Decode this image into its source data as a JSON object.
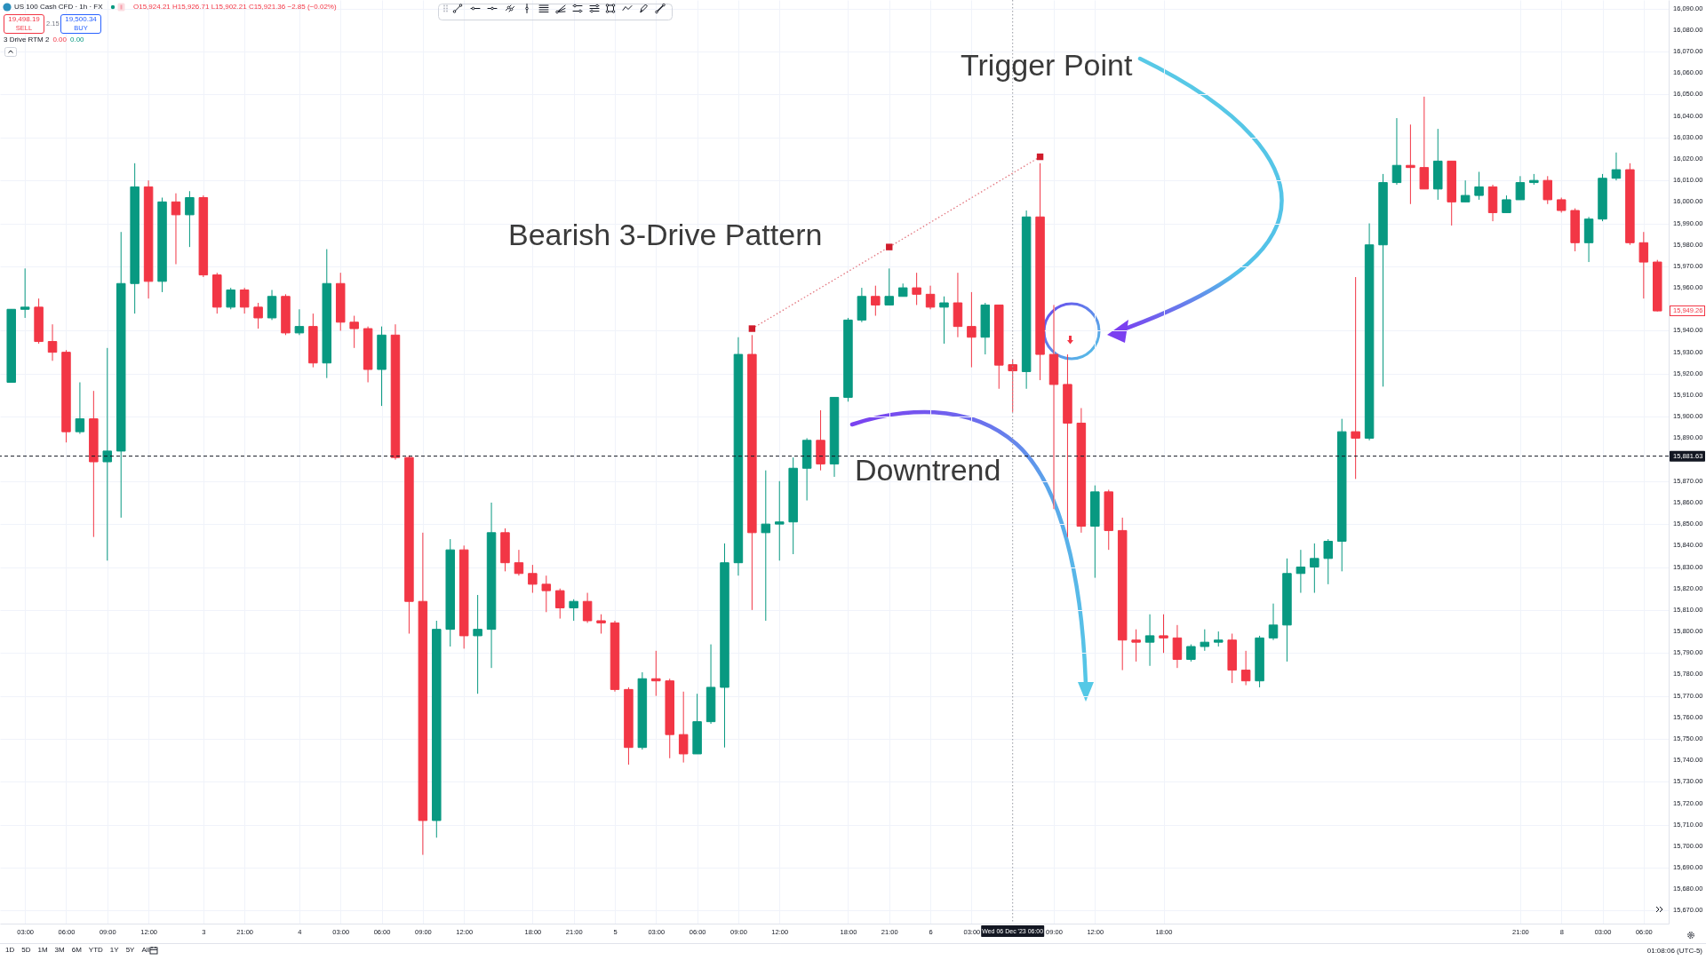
{
  "chart_data": {
    "type": "candlestick",
    "title": "US 100 Cash CFD · 1h · FX",
    "subtitle": "O15,924.21 H15,926.71 L15,902.21 C15,921.36 −2.85 (−0.02%)",
    "categories": [
      null,
      "03:00",
      null,
      null,
      "06:00",
      null,
      null,
      "09:00",
      null,
      null,
      "12:00",
      null,
      null,
      null,
      "3",
      null,
      null,
      "21:00",
      null,
      null,
      null,
      "4",
      null,
      null,
      "03:00",
      null,
      null,
      "06:00",
      null,
      null,
      "09:00",
      null,
      null,
      "12:00",
      null,
      null,
      null,
      null,
      "18:00",
      null,
      null,
      "21:00",
      null,
      null,
      "5",
      null,
      null,
      "03:00",
      null,
      null,
      "06:00",
      null,
      null,
      "09:00",
      null,
      null,
      "12:00",
      null,
      null,
      null,
      null,
      "18:00",
      null,
      null,
      "21:00",
      null,
      null,
      "6",
      null,
      null,
      "03:00",
      null,
      null,
      "Wed 06 Dec '23 06:00",
      null,
      null,
      "09:00",
      null,
      null,
      "12:00",
      null,
      null,
      null,
      null,
      "18:00",
      null,
      null,
      null,
      null,
      null,
      null,
      null,
      null,
      null,
      null,
      null,
      null,
      null,
      null,
      null,
      null,
      null,
      null,
      null,
      null,
      null,
      null,
      null,
      null,
      null,
      "21:00",
      null,
      null,
      "8",
      null,
      null,
      "03:00",
      null,
      null,
      "06:00",
      null
    ],
    "ohlc": [
      [
        15916,
        15950,
        15916,
        15950
      ],
      [
        15950,
        15969,
        15946,
        15951
      ],
      [
        15951,
        15955,
        15934,
        15935
      ],
      [
        15935,
        15943,
        15926,
        15930
      ],
      [
        15930,
        15931,
        15888,
        15893
      ],
      [
        15893,
        15916,
        15892,
        15899
      ],
      [
        15899,
        15912,
        15844,
        15879
      ],
      [
        15879,
        15932,
        15833,
        15884
      ],
      [
        15884,
        15986,
        15853,
        15962
      ],
      [
        15962,
        16018,
        15948,
        16007
      ],
      [
        16007,
        16010,
        15955,
        15963
      ],
      [
        15963,
        16002,
        15958,
        16000
      ],
      [
        16000,
        16004,
        15971,
        15994
      ],
      [
        15994,
        16005,
        15979,
        16002
      ],
      [
        16002,
        16003,
        15965,
        15966
      ],
      [
        15966,
        15967,
        15948,
        15951
      ],
      [
        15951,
        15960,
        15950,
        15959
      ],
      [
        15959,
        15960,
        15948,
        15951
      ],
      [
        15951,
        15953,
        15941,
        15946
      ],
      [
        15946,
        15959,
        15945,
        15956
      ],
      [
        15956,
        15957,
        15938,
        15939
      ],
      [
        15939,
        15950,
        15938,
        15942
      ],
      [
        15942,
        15948,
        15923,
        15925
      ],
      [
        15925,
        15978,
        15918,
        15962
      ],
      [
        15962,
        15967,
        15940,
        15944
      ],
      [
        15944,
        15947,
        15932,
        15941
      ],
      [
        15941,
        15942,
        15916,
        15922
      ],
      [
        15922,
        15942,
        15905,
        15938
      ],
      [
        15938,
        15943,
        15880,
        15881
      ],
      [
        15881,
        15882,
        15799,
        15814
      ],
      [
        15814,
        15846,
        15696,
        15712
      ],
      [
        15712,
        15805,
        15704,
        15801
      ],
      [
        15801,
        15843,
        15793,
        15838
      ],
      [
        15838,
        15840,
        15792,
        15798
      ],
      [
        15798,
        15817,
        15771,
        15801
      ],
      [
        15801,
        15860,
        15783,
        15846
      ],
      [
        15846,
        15848,
        15828,
        15832
      ],
      [
        15832,
        15838,
        15826,
        15827
      ],
      [
        15827,
        15831,
        15818,
        15822
      ],
      [
        15822,
        15826,
        15809,
        15819
      ],
      [
        15819,
        15820,
        15806,
        15811
      ],
      [
        15811,
        15815,
        15805,
        15814
      ],
      [
        15814,
        15818,
        15804,
        15805
      ],
      [
        15805,
        15808,
        15799,
        15804
      ],
      [
        15804,
        15805,
        15772,
        15773
      ],
      [
        15773,
        15774,
        15738,
        15746
      ],
      [
        15746,
        15781,
        15745,
        15778
      ],
      [
        15778,
        15791,
        15770,
        15777
      ],
      [
        15777,
        15778,
        15741,
        15752
      ],
      [
        15752,
        15772,
        15739,
        15743
      ],
      [
        15743,
        15771,
        15743,
        15758
      ],
      [
        15758,
        15794,
        15757,
        15774
      ],
      [
        15774,
        15841,
        15746,
        15832
      ],
      [
        15832,
        15937,
        15826,
        15929
      ],
      [
        15929,
        15938,
        15810,
        15846
      ],
      [
        15846,
        15875,
        15805,
        15850
      ],
      [
        15850,
        15870,
        15833,
        15851
      ],
      [
        15851,
        15881,
        15836,
        15876
      ],
      [
        15876,
        15890,
        15861,
        15889
      ],
      [
        15889,
        15903,
        15875,
        15878
      ],
      [
        15878,
        15909,
        15872,
        15909
      ],
      [
        15909,
        15946,
        15907,
        15945
      ],
      [
        15945,
        15960,
        15944,
        15956
      ],
      [
        15956,
        15961,
        15947,
        15952
      ],
      [
        15952,
        15969,
        15952,
        15956
      ],
      [
        15956,
        15962,
        15956,
        15960
      ],
      [
        15960,
        15967,
        15952,
        15957
      ],
      [
        15957,
        15961,
        15950,
        15951
      ],
      [
        15951,
        15956,
        15934,
        15953
      ],
      [
        15953,
        15967,
        15937,
        15942
      ],
      [
        15942,
        15958,
        15923,
        15937
      ],
      [
        15937,
        15953,
        15929,
        15952
      ],
      [
        15952,
        15952,
        15913,
        15924
      ],
      [
        15924.21,
        15926.71,
        15902.21,
        15921.36
      ],
      [
        15921,
        15996,
        15913,
        15993
      ],
      [
        15993,
        16018,
        15917,
        15929
      ],
      [
        15929,
        15952,
        15857,
        15915
      ],
      [
        15915,
        15929,
        15844,
        15897
      ],
      [
        15897,
        15904,
        15846,
        15849
      ],
      [
        15849,
        15868,
        15825,
        15865
      ],
      [
        15865,
        15866,
        15838,
        15847
      ],
      [
        15847,
        15853,
        15782,
        15796
      ],
      [
        15796,
        15801,
        15786,
        15795
      ],
      [
        15795,
        15808,
        15784,
        15798
      ],
      [
        15798,
        15808,
        15790,
        15797
      ],
      [
        15797,
        15803,
        15783,
        15787
      ],
      [
        15787,
        15794,
        15786,
        15793
      ],
      [
        15793,
        15801,
        15791,
        15795
      ],
      [
        15795,
        15800,
        15793,
        15796
      ],
      [
        15796,
        15799,
        15776,
        15782
      ],
      [
        15782,
        15791,
        15775,
        15777
      ],
      [
        15777,
        15798,
        15774,
        15797
      ],
      [
        15797,
        15813,
        15796,
        15803
      ],
      [
        15803,
        15834,
        15786,
        15827
      ],
      [
        15827,
        15838,
        15818,
        15830
      ],
      [
        15830,
        15841,
        15818,
        15834
      ],
      [
        15834,
        15843,
        15822,
        15842
      ],
      [
        15842,
        15899,
        15828,
        15893
      ],
      [
        15893,
        15965,
        15871,
        15890
      ],
      [
        15890,
        15990,
        15889,
        15980
      ],
      [
        15980,
        16013,
        15914,
        16009
      ],
      [
        16009,
        16039,
        16008,
        16017
      ],
      [
        16017,
        16036,
        15999,
        16016
      ],
      [
        16016,
        16049,
        16006,
        16006
      ],
      [
        16006,
        16034,
        16001,
        16019
      ],
      [
        16019,
        16019,
        15989,
        16000
      ],
      [
        16000,
        16010,
        16000,
        16003
      ],
      [
        16003,
        16014,
        16001,
        16007
      ],
      [
        16007,
        16008,
        15991,
        15995
      ],
      [
        15995,
        16003,
        15995,
        16001
      ],
      [
        16001,
        16012,
        16001,
        16009
      ],
      [
        16009,
        16013,
        16008,
        16010
      ],
      [
        16010,
        16012,
        15999,
        16001
      ],
      [
        16001,
        16002,
        15995,
        15996
      ],
      [
        15996,
        15997,
        15977,
        15981
      ],
      [
        15981,
        15993,
        15972,
        15992
      ],
      [
        15992,
        16013,
        15991,
        16011
      ],
      [
        16011,
        16023,
        16010,
        16015
      ],
      [
        16015,
        16018,
        15980,
        15981
      ],
      [
        15981,
        15986,
        15955,
        15972
      ],
      [
        15972,
        15973,
        15949,
        15949.26
      ]
    ],
    "colors": [
      "#089981",
      "#089981",
      "#f23645",
      "#f23645",
      "#f23645",
      "#089981",
      "#f23645",
      "#089981",
      "#089981",
      "#089981",
      "#f23645",
      "#089981",
      "#f23645",
      "#089981",
      "#f23645",
      "#f23645",
      "#089981",
      "#f23645",
      "#f23645",
      "#089981",
      "#f23645",
      "#089981",
      "#f23645",
      "#089981",
      "#f23645",
      "#f23645",
      "#f23645",
      "#089981",
      "#f23645",
      "#f23645",
      "#f23645",
      "#089981",
      "#089981",
      "#f23645",
      "#089981",
      "#089981",
      "#f23645",
      "#f23645",
      "#f23645",
      "#f23645",
      "#f23645",
      "#089981",
      "#f23645",
      "#f23645",
      "#f23645",
      "#f23645",
      "#089981",
      "#f23645",
      "#f23645",
      "#f23645",
      "#089981",
      "#089981",
      "#089981",
      "#089981",
      "#f23645",
      "#089981",
      "#089981",
      "#089981",
      "#089981",
      "#f23645",
      "#089981",
      "#089981",
      "#089981",
      "#f23645",
      "#089981",
      "#089981",
      "#f23645",
      "#f23645",
      "#089981",
      "#f23645",
      "#f23645",
      "#089981",
      "#f23645",
      "#f23645",
      "#089981",
      "#f23645",
      "#f23645",
      "#f23645",
      "#f23645",
      "#089981",
      "#f23645",
      "#f23645",
      "#f23645",
      "#089981",
      "#f23645",
      "#f23645",
      "#089981",
      "#089981",
      "#089981",
      "#f23645",
      "#f23645",
      "#089981",
      "#089981",
      "#089981",
      "#089981",
      "#089981",
      "#089981",
      "#089981",
      "#f23645",
      "#089981",
      "#089981",
      "#089981",
      "#f23645",
      "#f23645",
      "#089981",
      "#f23645",
      "#089981",
      "#089981",
      "#f23645",
      "#089981",
      "#089981",
      "#089981",
      "#f23645",
      "#f23645",
      "#f23645",
      "#089981",
      "#089981",
      "#089981",
      "#f23645",
      "#f23645",
      "#f23645"
    ],
    "series": [
      {
        "type": "line",
        "color": "#d01c2b",
        "line_style": "dotted",
        "marker": "square",
        "values": [
          null,
          null,
          null,
          null,
          null,
          null,
          null,
          null,
          null,
          null,
          null,
          null,
          null,
          null,
          null,
          null,
          null,
          null,
          null,
          null,
          null,
          null,
          null,
          null,
          null,
          null,
          null,
          null,
          null,
          null,
          null,
          null,
          null,
          null,
          null,
          null,
          null,
          null,
          null,
          null,
          null,
          null,
          null,
          null,
          null,
          null,
          null,
          null,
          null,
          null,
          null,
          null,
          null,
          null,
          15941,
          null,
          null,
          null,
          null,
          null,
          null,
          null,
          null,
          null,
          15979,
          null,
          null,
          null,
          null,
          null,
          null,
          null,
          null,
          null,
          null,
          16021,
          null,
          null,
          null,
          null,
          null,
          null,
          null,
          null,
          null,
          null,
          null,
          null,
          null,
          null,
          null,
          null,
          null,
          null,
          null,
          null,
          null,
          null,
          null,
          null,
          null,
          null,
          null,
          null,
          null,
          null,
          null,
          null,
          null,
          null,
          null,
          null,
          null,
          null,
          null,
          null,
          null,
          null,
          null,
          null,
          null
        ]
      }
    ],
    "ylim": [
      15664,
      16094
    ],
    "yticks": [
      {
        "value": 15670,
        "label": "15,670.00"
      },
      {
        "value": 15680,
        "label": "15,680.00"
      },
      {
        "value": 15690,
        "label": "15,690.00"
      },
      {
        "value": 15700,
        "label": "15,700.00"
      },
      {
        "value": 15710,
        "label": "15,710.00"
      },
      {
        "value": 15720,
        "label": "15,720.00"
      },
      {
        "value": 15730,
        "label": "15,730.00"
      },
      {
        "value": 15740,
        "label": "15,740.00"
      },
      {
        "value": 15750,
        "label": "15,750.00"
      },
      {
        "value": 15760,
        "label": "15,760.00"
      },
      {
        "value": 15770,
        "label": "15,770.00"
      },
      {
        "value": 15780,
        "label": "15,780.00"
      },
      {
        "value": 15790,
        "label": "15,790.00"
      },
      {
        "value": 15800,
        "label": "15,800.00"
      },
      {
        "value": 15810,
        "label": "15,810.00"
      },
      {
        "value": 15820,
        "label": "15,820.00"
      },
      {
        "value": 15830,
        "label": "15,830.00"
      },
      {
        "value": 15840,
        "label": "15,840.00"
      },
      {
        "value": 15850,
        "label": "15,850.00"
      },
      {
        "value": 15860,
        "label": "15,860.00"
      },
      {
        "value": 15870,
        "label": "15,870.00"
      },
      {
        "value": 15890,
        "label": "15,890.00"
      },
      {
        "value": 15900,
        "label": "15,900.00"
      },
      {
        "value": 15910,
        "label": "15,910.00"
      },
      {
        "value": 15920,
        "label": "15,920.00"
      },
      {
        "value": 15930,
        "label": "15,930.00"
      },
      {
        "value": 15940,
        "label": "15,940.00"
      },
      {
        "value": 15960,
        "label": "15,960.00"
      },
      {
        "value": 15970,
        "label": "15,970.00"
      },
      {
        "value": 15980,
        "label": "15,980.00"
      },
      {
        "value": 15990,
        "label": "15,990.00"
      },
      {
        "value": 16000,
        "label": "16,000.00"
      },
      {
        "value": 16010,
        "label": "16,010.00"
      },
      {
        "value": 16020,
        "label": "16,020.00"
      },
      {
        "value": 16030,
        "label": "16,030.00"
      },
      {
        "value": 16040,
        "label": "16,040.00"
      },
      {
        "value": 16050,
        "label": "16,050.00"
      },
      {
        "value": 16060,
        "label": "16,060.00"
      },
      {
        "value": 16070,
        "label": "16,070.00"
      },
      {
        "value": 16080,
        "label": "16,080.00"
      },
      {
        "value": 16090,
        "label": "16,090.00"
      }
    ],
    "grid": true,
    "ref_lines": [
      {
        "axis": "y",
        "value": 15881.63,
        "label": "15,881.63",
        "line_style": "dashed",
        "color": "#131722"
      },
      {
        "axis": "x",
        "value": "Wed 06 Dec '23 06:00",
        "line_style": "dotted",
        "color": "#9598a1"
      }
    ],
    "annotations": [
      "Trigger Point",
      "Bearish 3-Drive Pattern",
      "Downtrend",
      "3 Drive RTM 2",
      "0.00",
      "0.00",
      "19,498.19",
      "SELL",
      "2.15",
      "19,500.34",
      "BUY",
      "1D",
      "5D",
      "1M",
      "3M",
      "6M",
      "YTD",
      "1Y",
      "5Y",
      "All",
      "01:08:06 (UTC-5)",
      "15,949.26"
    ]
  }
}
